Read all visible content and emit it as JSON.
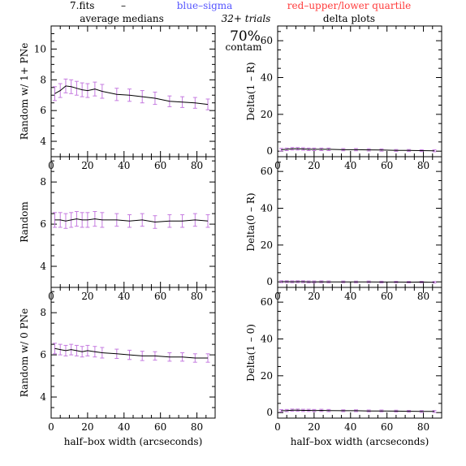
{
  "header": {
    "file": "7.fits",
    "dash": "–",
    "blue_label": "blue–sigma",
    "red_label": "red–upper/lower quartile",
    "left_title": "average medians",
    "right_title": "delta plots",
    "trials": "32+ trials",
    "contam_pct": "70%",
    "contam_word": "contam"
  },
  "colors": {
    "line": "#000000",
    "sigma": "#5555ff",
    "quartile": "#ff3b3b",
    "errbar": "#c57be0"
  },
  "chart_data": [
    {
      "type": "line",
      "panel": "left-1",
      "ylabel": "Random w/ 1+ PNe",
      "xlabel": "",
      "xlim": [
        0,
        90
      ],
      "ylim": [
        3,
        11.5
      ],
      "xticks": [
        0,
        20,
        40,
        60,
        80
      ],
      "yticks": [
        4,
        6,
        8,
        10
      ],
      "x": [
        2,
        5,
        8,
        11,
        14,
        17,
        20,
        24,
        28,
        36,
        43,
        50,
        57,
        65,
        72,
        79,
        86
      ],
      "values": [
        7.1,
        7.3,
        7.6,
        7.55,
        7.45,
        7.35,
        7.3,
        7.4,
        7.25,
        7.05,
        7.0,
        6.9,
        6.8,
        6.6,
        6.55,
        6.5,
        6.4
      ],
      "errors": [
        0.45,
        0.45,
        0.45,
        0.45,
        0.45,
        0.45,
        0.45,
        0.45,
        0.45,
        0.4,
        0.4,
        0.4,
        0.4,
        0.35,
        0.35,
        0.35,
        0.35
      ]
    },
    {
      "type": "line",
      "panel": "right-1",
      "ylabel": "Delta(1 – R)",
      "xlabel": "",
      "xlim": [
        0,
        90
      ],
      "ylim": [
        -3,
        68
      ],
      "xticks": [
        0,
        20,
        40,
        60,
        80
      ],
      "yticks": [
        0,
        20,
        40,
        60
      ],
      "x": [
        2,
        5,
        8,
        11,
        14,
        17,
        20,
        24,
        28,
        36,
        43,
        50,
        57,
        65,
        72,
        79,
        86
      ],
      "values": [
        0.8,
        1.0,
        1.3,
        1.3,
        1.2,
        1.0,
        1.0,
        1.0,
        1.0,
        0.8,
        0.8,
        0.7,
        0.6,
        0.4,
        0.4,
        0.3,
        0.2
      ],
      "errors": [
        0.7,
        0.7,
        0.7,
        0.7,
        0.7,
        0.7,
        0.7,
        0.7,
        0.7,
        0.6,
        0.6,
        0.6,
        0.6,
        0.5,
        0.5,
        0.5,
        0.5
      ]
    },
    {
      "type": "line",
      "panel": "left-2",
      "ylabel": "Random",
      "xlabel": "",
      "xlim": [
        0,
        90
      ],
      "ylim": [
        3,
        9.2
      ],
      "xticks": [
        0,
        20,
        40,
        60,
        80
      ],
      "yticks": [
        4,
        6,
        8
      ],
      "x": [
        2,
        5,
        8,
        11,
        14,
        17,
        20,
        24,
        28,
        36,
        43,
        50,
        57,
        65,
        72,
        79,
        86
      ],
      "values": [
        6.2,
        6.2,
        6.15,
        6.2,
        6.25,
        6.2,
        6.2,
        6.25,
        6.2,
        6.2,
        6.15,
        6.2,
        6.1,
        6.15,
        6.15,
        6.2,
        6.15
      ],
      "errors": [
        0.35,
        0.35,
        0.35,
        0.35,
        0.35,
        0.35,
        0.35,
        0.35,
        0.35,
        0.3,
        0.3,
        0.3,
        0.3,
        0.3,
        0.3,
        0.3,
        0.3
      ]
    },
    {
      "type": "line",
      "panel": "right-2",
      "ylabel": "Delta(0 – R)",
      "xlabel": "",
      "xlim": [
        0,
        90
      ],
      "ylim": [
        -3,
        68
      ],
      "xticks": [
        0,
        20,
        40,
        60,
        80
      ],
      "yticks": [
        0,
        20,
        40,
        60
      ],
      "x": [
        2,
        5,
        8,
        11,
        14,
        17,
        20,
        24,
        28,
        36,
        43,
        50,
        57,
        65,
        72,
        79,
        86
      ],
      "values": [
        0.1,
        0.1,
        0.05,
        0.1,
        0.1,
        0.0,
        0.0,
        0.05,
        0.0,
        0.0,
        -0.05,
        0.0,
        -0.1,
        -0.1,
        -0.15,
        -0.1,
        -0.2
      ],
      "errors": [
        0.5,
        0.5,
        0.5,
        0.5,
        0.5,
        0.5,
        0.5,
        0.5,
        0.5,
        0.45,
        0.45,
        0.45,
        0.45,
        0.4,
        0.4,
        0.4,
        0.4
      ]
    },
    {
      "type": "line",
      "panel": "left-3",
      "ylabel": "Random w/ 0 PNe",
      "xlabel": "half–box width (arcseconds)",
      "xlim": [
        0,
        90
      ],
      "ylim": [
        3,
        9.2
      ],
      "xticks": [
        0,
        20,
        40,
        60,
        80
      ],
      "yticks": [
        4,
        6,
        8
      ],
      "x": [
        2,
        5,
        8,
        11,
        14,
        17,
        20,
        24,
        28,
        36,
        43,
        50,
        57,
        65,
        72,
        79,
        86
      ],
      "values": [
        6.3,
        6.25,
        6.2,
        6.25,
        6.2,
        6.15,
        6.2,
        6.15,
        6.1,
        6.05,
        6.0,
        5.95,
        5.95,
        5.9,
        5.9,
        5.85,
        5.85
      ],
      "errors": [
        0.25,
        0.25,
        0.25,
        0.25,
        0.25,
        0.25,
        0.25,
        0.25,
        0.25,
        0.22,
        0.22,
        0.22,
        0.2,
        0.2,
        0.2,
        0.2,
        0.2
      ]
    },
    {
      "type": "line",
      "panel": "right-3",
      "ylabel": "Delta(1 – 0)",
      "xlabel": "half–box width (arcseconds)",
      "xlim": [
        0,
        90
      ],
      "ylim": [
        -3,
        68
      ],
      "xticks": [
        0,
        20,
        40,
        60,
        80
      ],
      "yticks": [
        0,
        20,
        40,
        60
      ],
      "x": [
        2,
        5,
        8,
        11,
        14,
        17,
        20,
        24,
        28,
        36,
        43,
        50,
        57,
        65,
        72,
        79,
        86
      ],
      "values": [
        1.0,
        1.1,
        1.3,
        1.3,
        1.2,
        1.2,
        1.1,
        1.2,
        1.1,
        1.0,
        1.0,
        0.9,
        0.9,
        0.8,
        0.7,
        0.6,
        0.6
      ],
      "errors": [
        0.6,
        0.6,
        0.6,
        0.6,
        0.6,
        0.6,
        0.6,
        0.6,
        0.6,
        0.5,
        0.5,
        0.5,
        0.5,
        0.5,
        0.5,
        0.5,
        0.5
      ]
    }
  ]
}
